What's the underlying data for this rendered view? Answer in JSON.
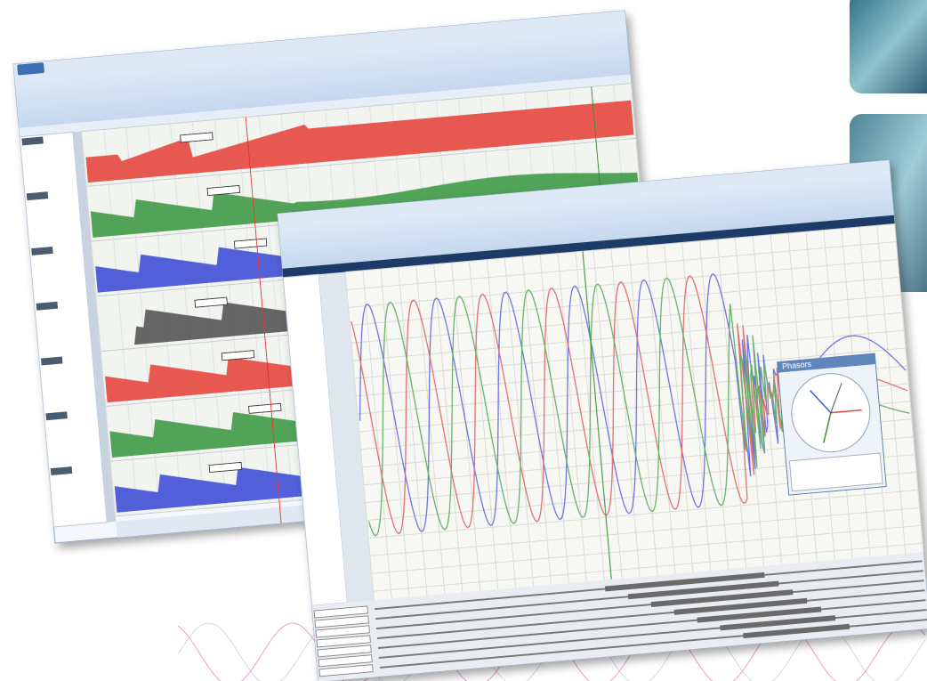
{
  "phasor_window": {
    "title": "Phasors"
  }
}
